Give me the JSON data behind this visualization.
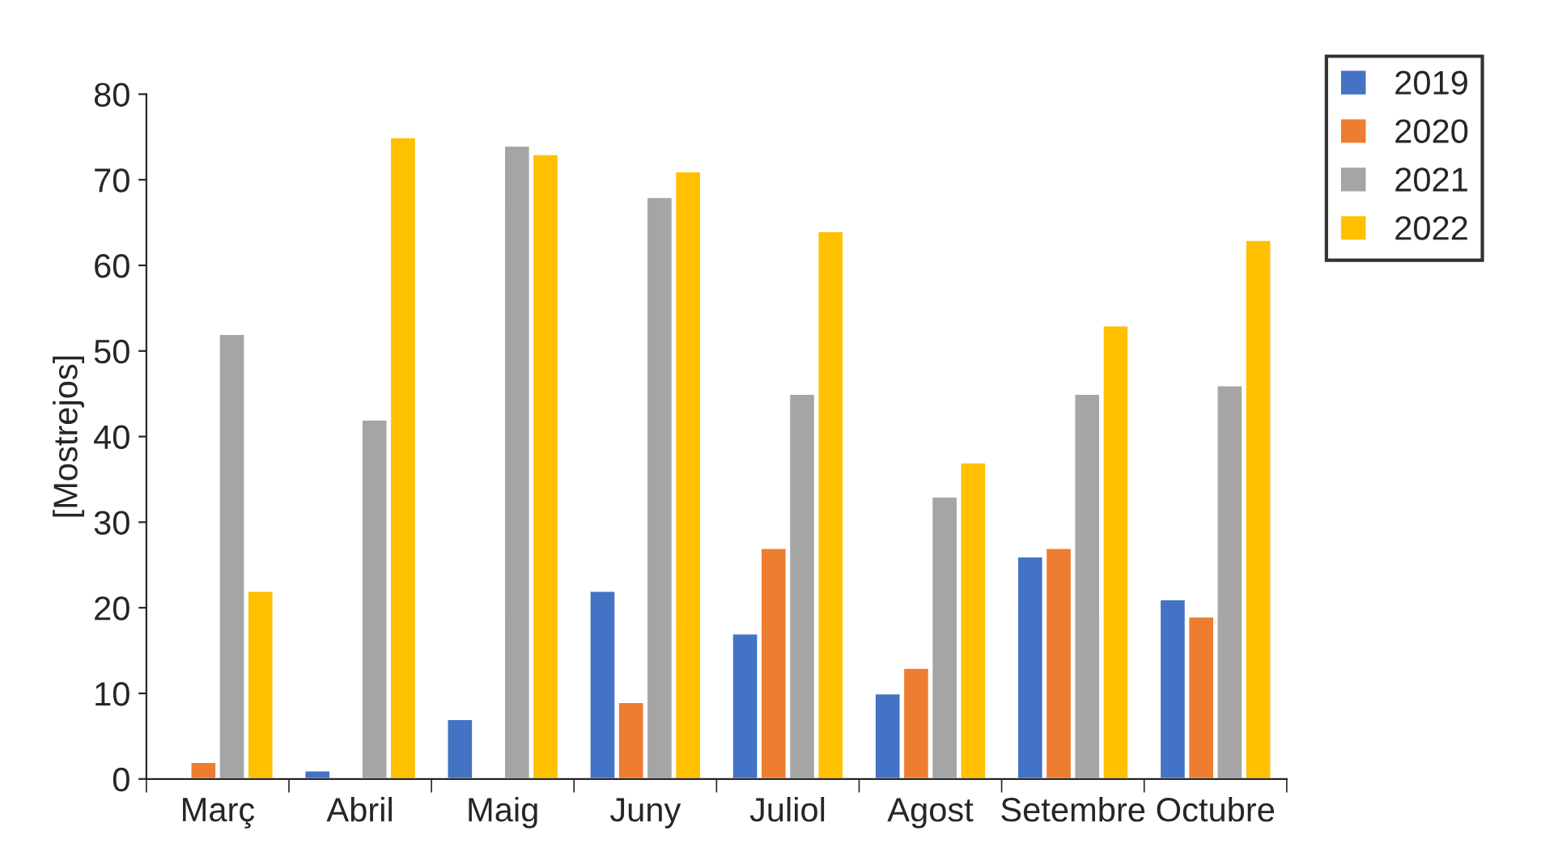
{
  "chart_data": {
    "type": "bar",
    "ylabel": "[Mostrejos]",
    "categories": [
      "Març",
      "Abril",
      "Maig",
      "Juny",
      "Juliol",
      "Agost",
      "Setembre",
      "Octubre"
    ],
    "series": [
      {
        "name": "2019",
        "color": "#4472c4",
        "values": [
          null,
          1,
          7,
          22,
          17,
          10,
          26,
          21
        ]
      },
      {
        "name": "2020",
        "color": "#ed7d31",
        "values": [
          2,
          null,
          null,
          9,
          27,
          13,
          27,
          19
        ]
      },
      {
        "name": "2021",
        "color": "#a5a5a5",
        "values": [
          52,
          42,
          74,
          68,
          45,
          33,
          45,
          46
        ]
      },
      {
        "name": "2022",
        "color": "#ffc000",
        "values": [
          22,
          75,
          73,
          71,
          64,
          37,
          53,
          63
        ]
      }
    ],
    "ylim": [
      0,
      80
    ],
    "yticks": [
      0,
      10,
      20,
      30,
      40,
      50,
      60,
      70,
      80
    ],
    "grid": false,
    "legend": "top right"
  }
}
